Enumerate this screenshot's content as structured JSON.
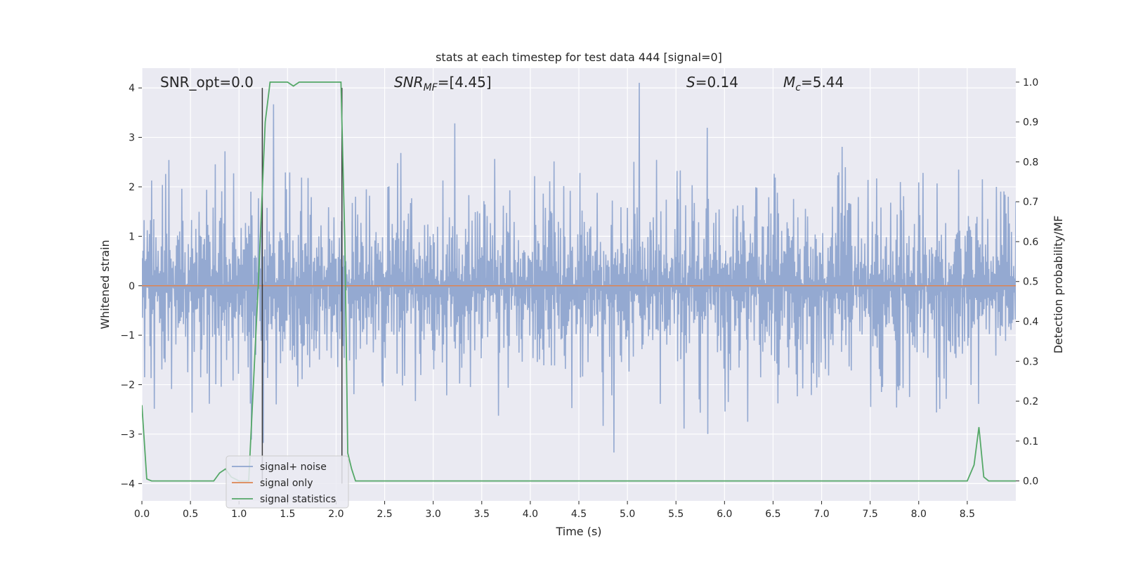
{
  "chart_data": {
    "type": "line",
    "title": "stats at each timestep for test data 444 [signal=0]",
    "xlabel": "Time (s)",
    "ylabel": "Whitened strain",
    "ylabel_right": "Detection probability/MF",
    "xlim": [
      0,
      9.0
    ],
    "ylim": [
      -4.35,
      4.4
    ],
    "ylim_right": [
      -0.05,
      1.035
    ],
    "x_ticks": [
      "0.0",
      "0.5",
      "1.0",
      "1.5",
      "2.0",
      "2.5",
      "3.0",
      "3.5",
      "4.0",
      "4.5",
      "5.0",
      "5.5",
      "6.0",
      "6.5",
      "7.0",
      "7.5",
      "8.0",
      "8.5"
    ],
    "x_tick_values": [
      0,
      0.5,
      1,
      1.5,
      2,
      2.5,
      3,
      3.5,
      4,
      4.5,
      5,
      5.5,
      6,
      6.5,
      7,
      7.5,
      8,
      8.5
    ],
    "y_ticks": [
      "−4",
      "−3",
      "−2",
      "−1",
      "0",
      "1",
      "2",
      "3",
      "4"
    ],
    "y_tick_values": [
      -4,
      -3,
      -2,
      -1,
      0,
      1,
      2,
      3,
      4
    ],
    "y2_ticks": [
      "0.0",
      "0.1",
      "0.2",
      "0.3",
      "0.4",
      "0.5",
      "0.6",
      "0.7",
      "0.8",
      "0.9",
      "1.0"
    ],
    "y2_tick_values": [
      0,
      0.1,
      0.2,
      0.3,
      0.4,
      0.5,
      0.6,
      0.7,
      0.8,
      0.9,
      1.0
    ],
    "grid": true,
    "legend_position": "bottom-left",
    "annotations": {
      "snr_opt": "SNR_opt=0.0",
      "snr_mf_main": "SNR",
      "snr_mf_sub": "MF",
      "snr_mf_value": "=[4.45]",
      "s_main": "S",
      "s_value": "=0.14",
      "mc_main": "M",
      "mc_sub": "c",
      "mc_value": "=5.44"
    },
    "vertical_lines_x": [
      1.24,
      2.06
    ],
    "series": [
      {
        "name": "signal+ noise",
        "color": "#8fa5cf",
        "description_type": "noise",
        "sample_rate_hz": 180,
        "duration_s": 9.0
      },
      {
        "name": "signal only",
        "color": "#dd8452",
        "x": [
          0,
          9.0
        ],
        "y": [
          0,
          0
        ]
      },
      {
        "name": "signal statistics",
        "color": "#55a868",
        "axis": "right",
        "x": [
          0.0,
          0.05,
          0.1,
          0.2,
          0.4,
          0.6,
          0.74,
          0.8,
          0.86,
          0.92,
          1.0,
          1.1,
          1.2,
          1.27,
          1.32,
          1.4,
          1.5,
          1.56,
          1.62,
          1.7,
          1.8,
          1.9,
          2.0,
          2.05,
          2.09,
          2.12,
          2.16,
          2.2,
          2.4,
          3.0,
          4.0,
          5.0,
          6.0,
          7.0,
          8.0,
          8.5,
          8.57,
          8.62,
          8.67,
          8.72,
          8.8,
          9.0
        ],
        "y": [
          0.19,
          0.005,
          0.0,
          0.0,
          0.0,
          0.0,
          0.0,
          0.02,
          0.03,
          0.01,
          0.0,
          0.0,
          0.5,
          0.9,
          1.0,
          1.0,
          1.0,
          0.99,
          1.0,
          1.0,
          1.0,
          1.0,
          1.0,
          1.0,
          0.6,
          0.07,
          0.03,
          0.0,
          0.0,
          0.0,
          0.0,
          0.0,
          0.0,
          0.0,
          0.0,
          0.0,
          0.04,
          0.135,
          0.01,
          0.0,
          0.0,
          0.0
        ]
      }
    ]
  },
  "colors": {
    "plot_bg": "#eaeaf2",
    "grid": "#ffffff",
    "text": "#262626",
    "vline": "#3a3a3a"
  }
}
